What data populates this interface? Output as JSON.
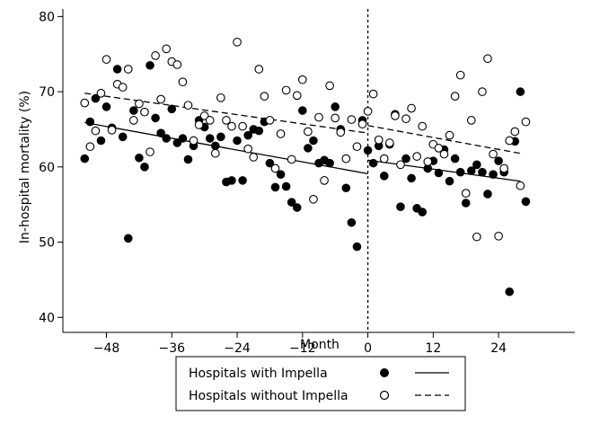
{
  "chart_data": {
    "type": "scatter",
    "xlabel": "Month",
    "ylabel": "In-hospital mortality (%)",
    "xlim": [
      -56,
      38
    ],
    "ylim": [
      38,
      81
    ],
    "x_ticks": [
      -48,
      -36,
      -24,
      -12,
      0,
      12,
      24
    ],
    "y_ticks": [
      40,
      50,
      60,
      70,
      80
    ],
    "grid": false,
    "legend_placement": "bottom",
    "cutoff_x": 0,
    "series": [
      {
        "name": "Hospitals with Impella",
        "marker": "filled-circle",
        "line_style": "solid",
        "points": [
          [
            -52,
            61.1
          ],
          [
            -51,
            66
          ],
          [
            -50,
            69.1
          ],
          [
            -49,
            63.5
          ],
          [
            -48,
            68
          ],
          [
            -47,
            65.2
          ],
          [
            -46,
            73
          ],
          [
            -45,
            64
          ],
          [
            -44,
            50.5
          ],
          [
            -43,
            67.5
          ],
          [
            -42,
            61.2
          ],
          [
            -41,
            60
          ],
          [
            -40,
            73.5
          ],
          [
            -39,
            66.5
          ],
          [
            -38,
            64.5
          ],
          [
            -37,
            63.8
          ],
          [
            -36,
            67.7
          ],
          [
            -35,
            63.2
          ],
          [
            -34,
            63.8
          ],
          [
            -33,
            61
          ],
          [
            -32,
            62.8
          ],
          [
            -31,
            66.2
          ],
          [
            -30,
            65.3
          ],
          [
            -29,
            63.8
          ],
          [
            -28,
            62.8
          ],
          [
            -27,
            64
          ],
          [
            -26,
            58
          ],
          [
            -25,
            58.2
          ],
          [
            -24,
            63.5
          ],
          [
            -23,
            58.2
          ],
          [
            -22,
            64.2
          ],
          [
            -21,
            65
          ],
          [
            -20,
            64.8
          ],
          [
            -19,
            66
          ],
          [
            -18,
            60.5
          ],
          [
            -17,
            57.3
          ],
          [
            -16,
            59
          ],
          [
            -15,
            57.4
          ],
          [
            -14,
            55.3
          ],
          [
            -13,
            54.6
          ],
          [
            -12,
            67.5
          ],
          [
            -11,
            62.5
          ],
          [
            -10,
            63.5
          ],
          [
            -9,
            60.5
          ],
          [
            -8,
            60.9
          ],
          [
            -7,
            60.5
          ],
          [
            -6,
            68
          ],
          [
            -5,
            65
          ],
          [
            -4,
            57.2
          ],
          [
            -3,
            52.6
          ],
          [
            -2,
            49.4
          ],
          [
            -1,
            66.2
          ],
          [
            0,
            62.2
          ],
          [
            1,
            60.5
          ],
          [
            2,
            62.8
          ],
          [
            3,
            58.8
          ],
          [
            4,
            63
          ],
          [
            5,
            67
          ],
          [
            6,
            54.7
          ],
          [
            7,
            61.1
          ],
          [
            8,
            58.5
          ],
          [
            9,
            54.5
          ],
          [
            10,
            54
          ],
          [
            11,
            59.8
          ],
          [
            12,
            60.8
          ],
          [
            13,
            59.2
          ],
          [
            14,
            62.3
          ],
          [
            15,
            58.1
          ],
          [
            16,
            61.1
          ],
          [
            17,
            59.3
          ],
          [
            18,
            55.2
          ],
          [
            19,
            59.5
          ],
          [
            20,
            60.3
          ],
          [
            21,
            59.3
          ],
          [
            22,
            56.4
          ],
          [
            23,
            59
          ],
          [
            24,
            60.8
          ],
          [
            25,
            59.3
          ],
          [
            26,
            43.4
          ],
          [
            27,
            63.4
          ],
          [
            28,
            70
          ],
          [
            29,
            55.4
          ]
        ],
        "fit": {
          "segments": [
            {
              "x": [
                -52,
                0
              ],
              "y": [
                65.9,
                59.1
              ]
            },
            {
              "x": [
                0,
                28
              ],
              "y": [
                60.9,
                58.1
              ]
            }
          ]
        }
      },
      {
        "name": "Hospitals without Impella",
        "marker": "hollow-circle",
        "line_style": "dashed",
        "points": [
          [
            -52,
            68.5
          ],
          [
            -51,
            62.7
          ],
          [
            -50,
            64.8
          ],
          [
            -49,
            69.8
          ],
          [
            -48,
            74.3
          ],
          [
            -47,
            64.9
          ],
          [
            -46,
            71
          ],
          [
            -45,
            70.6
          ],
          [
            -44,
            73
          ],
          [
            -43,
            66.2
          ],
          [
            -42,
            68.4
          ],
          [
            -41,
            67.3
          ],
          [
            -40,
            62
          ],
          [
            -39,
            74.8
          ],
          [
            -38,
            69
          ],
          [
            -37,
            75.7
          ],
          [
            -36,
            74
          ],
          [
            -35,
            73.6
          ],
          [
            -34,
            71.3
          ],
          [
            -33,
            68.2
          ],
          [
            -32,
            63.5
          ],
          [
            -31,
            65.6
          ],
          [
            -30,
            66.8
          ],
          [
            -29,
            66.2
          ],
          [
            -28,
            61.8
          ],
          [
            -27,
            69.2
          ],
          [
            -26,
            66.2
          ],
          [
            -25,
            65.4
          ],
          [
            -24,
            76.6
          ],
          [
            -23,
            65.4
          ],
          [
            -22,
            62.4
          ],
          [
            -21,
            61.3
          ],
          [
            -20,
            73
          ],
          [
            -19,
            69.4
          ],
          [
            -18,
            66.2
          ],
          [
            -17,
            59.8
          ],
          [
            -16,
            64.4
          ],
          [
            -15,
            70.2
          ],
          [
            -14,
            61
          ],
          [
            -13,
            69.5
          ],
          [
            -12,
            71.6
          ],
          [
            -11,
            64.7
          ],
          [
            -10,
            55.7
          ],
          [
            -9,
            66.6
          ],
          [
            -8,
            58.2
          ],
          [
            -7,
            70.8
          ],
          [
            -6,
            66.5
          ],
          [
            -5,
            64.6
          ],
          [
            -4,
            61.1
          ],
          [
            -3,
            66.3
          ],
          [
            -2,
            62.7
          ],
          [
            -1,
            65.7
          ],
          [
            0,
            67.4
          ],
          [
            1,
            69.7
          ],
          [
            2,
            63.6
          ],
          [
            3,
            61.1
          ],
          [
            4,
            63.2
          ],
          [
            5,
            66.8
          ],
          [
            6,
            60.3
          ],
          [
            7,
            66.4
          ],
          [
            8,
            67.8
          ],
          [
            9,
            61.4
          ],
          [
            10,
            65.4
          ],
          [
            11,
            60.7
          ],
          [
            12,
            63
          ],
          [
            13,
            62.5
          ],
          [
            14,
            61.7
          ],
          [
            15,
            64.2
          ],
          [
            16,
            69.4
          ],
          [
            17,
            72.2
          ],
          [
            18,
            56.5
          ],
          [
            19,
            66.2
          ],
          [
            20,
            50.7
          ],
          [
            21,
            70
          ],
          [
            22,
            74.4
          ],
          [
            23,
            61.7
          ],
          [
            24,
            50.8
          ],
          [
            25,
            59.8
          ],
          [
            26,
            63.5
          ],
          [
            27,
            64.7
          ],
          [
            28,
            57.5
          ],
          [
            29,
            66
          ]
        ],
        "fit": {
          "segments": [
            {
              "x": [
                -52,
                0
              ],
              "y": [
                69.8,
                64.5
              ]
            },
            {
              "x": [
                0,
                28
              ],
              "y": [
                65.5,
                61.8
              ]
            }
          ]
        }
      }
    ]
  }
}
